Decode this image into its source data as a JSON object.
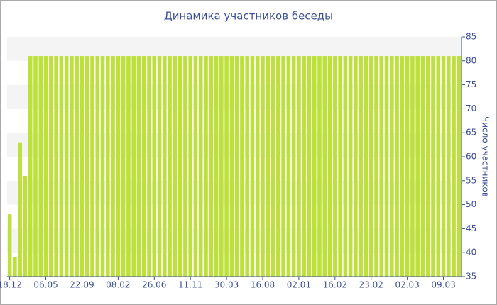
{
  "chart_data": {
    "type": "bar",
    "title": "Динамика участников беседы",
    "y_axis_label": "Число участников",
    "categories": [
      "18.12",
      null,
      null,
      null,
      null,
      null,
      null,
      "06.05",
      null,
      null,
      null,
      null,
      null,
      null,
      "22.09",
      null,
      null,
      null,
      null,
      null,
      null,
      "08.02",
      null,
      null,
      null,
      null,
      null,
      null,
      "26.06",
      null,
      null,
      null,
      null,
      null,
      null,
      "11.11",
      null,
      null,
      null,
      null,
      null,
      null,
      "30.03",
      null,
      null,
      null,
      null,
      null,
      null,
      "16.08",
      null,
      null,
      null,
      null,
      null,
      null,
      "02.01",
      null,
      null,
      null,
      null,
      null,
      null,
      "16.02",
      null,
      null,
      null,
      null,
      null,
      null,
      "23.02",
      null,
      null,
      null,
      null,
      null,
      null,
      "02.03",
      null,
      null,
      null,
      null,
      null,
      null,
      "09.03",
      null,
      null,
      null
    ],
    "values": [
      48,
      39,
      63,
      56,
      81,
      81,
      81,
      81,
      81,
      81,
      81,
      81,
      81,
      81,
      81,
      81,
      81,
      81,
      81,
      81,
      81,
      81,
      81,
      81,
      81,
      81,
      81,
      81,
      81,
      81,
      81,
      81,
      81,
      81,
      81,
      81,
      81,
      81,
      81,
      81,
      81,
      81,
      81,
      81,
      81,
      81,
      81,
      81,
      81,
      81,
      81,
      81,
      81,
      81,
      81,
      81,
      81,
      81,
      81,
      81,
      81,
      81,
      81,
      81,
      81,
      81,
      81,
      81,
      81,
      81,
      81,
      81,
      81,
      81,
      81,
      81,
      81,
      81,
      81,
      81,
      81,
      81,
      81,
      81,
      81,
      81,
      81,
      81
    ],
    "color": "#bde03a",
    "ylim": [
      35,
      85
    ],
    "yticks": [
      35,
      40,
      45,
      50,
      55,
      60,
      65,
      70,
      75,
      80,
      85
    ],
    "grid": true
  }
}
